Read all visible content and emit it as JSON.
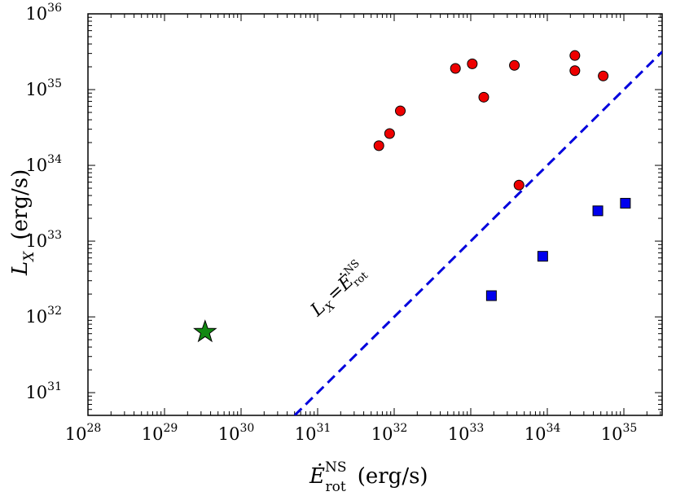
{
  "chart_data": {
    "type": "scatter",
    "title": "",
    "xlabel": {
      "symbol": "Ė",
      "superscript": "NS",
      "subscript": "rot",
      "units": "(erg/s)"
    },
    "ylabel": {
      "symbol": "L",
      "subscript": "X",
      "units": "(erg/s)"
    },
    "xscale": "log",
    "yscale": "log",
    "xlim_log10": [
      28,
      35.5
    ],
    "ylim_log10": [
      30.7,
      36
    ],
    "x_ticks": [
      {
        "base": "10",
        "exp": "28",
        "log": 28
      },
      {
        "base": "10",
        "exp": "29",
        "log": 29
      },
      {
        "base": "10",
        "exp": "30",
        "log": 30
      },
      {
        "base": "10",
        "exp": "31",
        "log": 31
      },
      {
        "base": "10",
        "exp": "32",
        "log": 32
      },
      {
        "base": "10",
        "exp": "33",
        "log": 33
      },
      {
        "base": "10",
        "exp": "34",
        "log": 34
      },
      {
        "base": "10",
        "exp": "35",
        "log": 35
      }
    ],
    "y_ticks": [
      {
        "base": "10",
        "exp": "31",
        "log": 31
      },
      {
        "base": "10",
        "exp": "32",
        "log": 32
      },
      {
        "base": "10",
        "exp": "33",
        "log": 33
      },
      {
        "base": "10",
        "exp": "34",
        "log": 34
      },
      {
        "base": "10",
        "exp": "35",
        "log": 35
      },
      {
        "base": "10",
        "exp": "36",
        "log": 36
      }
    ],
    "series": [
      {
        "name": "red circles",
        "marker": "circle",
        "color": "#ee0000",
        "points_log10": [
          [
            31.8,
            34.26
          ],
          [
            31.94,
            34.42
          ],
          [
            32.08,
            34.72
          ],
          [
            32.8,
            35.28
          ],
          [
            33.02,
            35.34
          ],
          [
            33.17,
            34.9
          ],
          [
            33.57,
            35.32
          ],
          [
            34.36,
            35.45
          ],
          [
            34.36,
            35.25
          ],
          [
            34.73,
            35.18
          ],
          [
            33.63,
            33.74
          ]
        ]
      },
      {
        "name": "blue squares",
        "marker": "square",
        "color": "#0000ee",
        "points_log10": [
          [
            33.27,
            32.28
          ],
          [
            33.94,
            32.8
          ],
          [
            34.66,
            33.4
          ],
          [
            35.02,
            33.5
          ]
        ]
      },
      {
        "name": "green star",
        "marker": "star",
        "color": "#118811",
        "points_log10": [
          [
            29.53,
            31.8
          ]
        ]
      }
    ],
    "lines": [
      {
        "name": "L_X = E_rot^NS",
        "style": "dashed",
        "color": "#0000dd",
        "points_log10": [
          [
            30.7,
            30.7
          ],
          [
            35.5,
            35.5
          ]
        ]
      }
    ],
    "annotation": {
      "lhs_symbol": "L",
      "lhs_sub": "X",
      "equals": "=",
      "rhs_symbol": "Ė",
      "rhs_sup": "NS",
      "rhs_sub": "rot",
      "anchor_log10": [
        31.0,
        32.0
      ],
      "rotation_deg": -43
    }
  }
}
